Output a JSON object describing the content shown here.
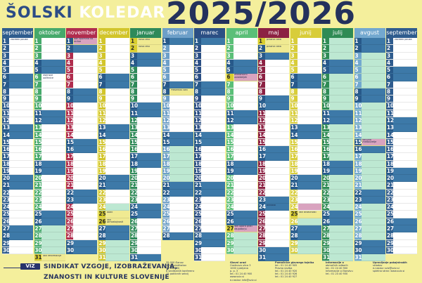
{
  "header": {
    "title_words": [
      "ŠOLSKI",
      "KOLEDAR"
    ],
    "year": "2025/2026"
  },
  "colors": {
    "header_bg": "#f4ef9c",
    "weekend_bg": "#3d79a8",
    "weekend_day_bg": "#27598a",
    "holiday_bg": "#f0ea92",
    "holiday_num_bg": "#d9ce2e",
    "event_bg": "#d9a3bf",
    "vacation_bg": "#bde8d2"
  },
  "calendar": {
    "months": [
      {
        "name": "september",
        "color": "#2f5c8e",
        "start_wd": 0,
        "days": 30,
        "weekend": [
          6,
          7,
          13,
          14,
          20,
          21,
          27,
          28
        ],
        "holiday": [],
        "vac": [],
        "pink": [],
        "events": {
          "1": "začetek pouka",
          "14": "",
          "16": "",
          "17": "",
          "18": "",
          "19": "",
          "20": "",
          "21": ""
        }
      },
      {
        "name": "oktober",
        "color": "#46a96b",
        "start_wd": 2,
        "days": 31,
        "weekend": [
          4,
          5,
          11,
          12,
          18,
          19,
          25,
          26
        ],
        "holiday": [
          31
        ],
        "vac": [
          27,
          28,
          29,
          30
        ],
        "pink": [],
        "events": {
          "5": "",
          "6": "jesenske počitnice",
          "23": "",
          "25": "",
          "27": "",
          "28": "",
          "31": "dan reformacije"
        }
      },
      {
        "name": "november",
        "color": "#b02d4e",
        "start_wd": 5,
        "days": 30,
        "weekend": [
          1,
          2,
          8,
          9,
          15,
          16,
          22,
          23,
          29,
          30
        ],
        "holiday": [
          1
        ],
        "vac": [],
        "pink": [
          1
        ],
        "events": {
          "1": "dan spomina na mrtve",
          "10": "",
          "20": "",
          "22": "",
          "25": "",
          "26": "",
          "27": "",
          "28": ""
        }
      },
      {
        "name": "december",
        "color": "#d2c52b",
        "start_wd": 0,
        "days": 31,
        "weekend": [
          6,
          7,
          13,
          14,
          20,
          21,
          27,
          28
        ],
        "holiday": [
          25,
          26
        ],
        "vac": [
          24,
          29,
          30,
          31
        ],
        "pink": [],
        "events": {
          "25": "božič",
          "26": "dan samostojnosti",
          "24": "",
          "28": ""
        }
      },
      {
        "name": "januar",
        "color": "#2e8a5a",
        "start_wd": 3,
        "days": 31,
        "weekend": [
          3,
          4,
          10,
          11,
          17,
          18,
          24,
          25,
          31
        ],
        "holiday": [
          1,
          2
        ],
        "vac": [],
        "pink": [],
        "events": {
          "1": "novo leto",
          "2": "novo leto",
          "6": "",
          "9": "",
          "10": "",
          "22": "",
          "30": ""
        }
      },
      {
        "name": "februar",
        "color": "#6d9fc8",
        "start_wd": 6,
        "days": 28,
        "weekend": [
          1,
          7,
          8,
          14,
          15,
          21,
          22,
          28
        ],
        "holiday": [
          8
        ],
        "vac": [
          16,
          17,
          18,
          19,
          20
        ],
        "pink": [
          5,
          6
        ],
        "events": {
          "8": "Prešernov dan",
          "12": "",
          "14": "",
          "16": "",
          "17": "",
          "18": "",
          "19": "",
          "20": "",
          "22": "",
          "26": ""
        }
      },
      {
        "name": "marec",
        "color": "#2b4f84",
        "start_wd": 6,
        "days": 31,
        "weekend": [
          1,
          7,
          8,
          14,
          15,
          21,
          22,
          28,
          29
        ],
        "holiday": [],
        "vac": [],
        "pink": [],
        "events": {
          "1": "",
          "7": "",
          "15": "",
          "17": "",
          "18": "",
          "21": "",
          "22": "",
          "27": ""
        }
      },
      {
        "name": "april",
        "color": "#5bbf78",
        "start_wd": 2,
        "days": 30,
        "weekend": [
          4,
          5,
          11,
          12,
          18,
          19,
          25,
          26
        ],
        "holiday": [
          6,
          27
        ],
        "vac": [
          27,
          28,
          29,
          30
        ],
        "pink": [
          6,
          27
        ],
        "events": {
          "6": "velikonočni ponedeljek",
          "14": "",
          "17": "",
          "19": "",
          "27": "dan upora proti okupatorju"
        }
      },
      {
        "name": "maj",
        "color": "#8c2143",
        "start_wd": 4,
        "days": 31,
        "weekend": [
          2,
          3,
          9,
          10,
          16,
          17,
          23,
          24,
          30,
          31
        ],
        "holiday": [
          1,
          2
        ],
        "vac": [],
        "pink": [],
        "events": {
          "1": "praznik dela",
          "2": "praznik dela",
          "8": "",
          "18": "",
          "19": "",
          "20": "",
          "21": "",
          "24": "binkošti"
        }
      },
      {
        "name": "junij",
        "color": "#d8cd3a",
        "start_wd": 0,
        "days": 30,
        "weekend": [
          6,
          7,
          13,
          14,
          20,
          21,
          27,
          28
        ],
        "holiday": [
          25
        ],
        "vac": [
          26,
          27,
          28,
          29,
          30
        ],
        "pink": [
          24
        ],
        "events": {
          "5": "",
          "14": "",
          "15": "",
          "16": "",
          "17": "",
          "23": "",
          "24": "",
          "25": "dan državnosti",
          "26": ""
        }
      },
      {
        "name": "julij",
        "color": "#2f8b55",
        "start_wd": 2,
        "days": 31,
        "weekend": [
          4,
          5,
          11,
          12,
          18,
          19,
          25,
          26
        ],
        "holiday": [],
        "vac": [
          1,
          2,
          3,
          6,
          7,
          8,
          9,
          10,
          13,
          14,
          15,
          16,
          17,
          20,
          21,
          22,
          23,
          24,
          27,
          28,
          29,
          30,
          31
        ],
        "pink": [],
        "events": {}
      },
      {
        "name": "avgust",
        "color": "#73a8cf",
        "start_wd": 5,
        "days": 31,
        "weekend": [
          1,
          2,
          8,
          9,
          15,
          16,
          22,
          23,
          29,
          30
        ],
        "holiday": [
          15
        ],
        "vac": [
          3,
          4,
          5,
          6,
          7,
          10,
          11,
          12,
          13,
          14,
          17,
          18,
          19,
          20,
          21,
          24,
          25,
          26,
          27,
          28,
          31
        ],
        "pink": [
          15
        ],
        "events": {
          "15": "Marijino vnebovzetje",
          "17": "",
          "26": ""
        }
      },
      {
        "name": "september",
        "color": "#2f5c8e",
        "start_wd": 1,
        "days": 30,
        "weekend": [
          5,
          6,
          12,
          13,
          19,
          20,
          26,
          27
        ],
        "holiday": [],
        "vac": [],
        "pink": [],
        "events": {
          "1": "začetek pouka"
        }
      }
    ]
  },
  "footer": {
    "logo": "VIZ",
    "union_line1": "SINDIKAT VZGOJE, IZOBRAŽEVANJA,",
    "union_line2": "ZNANOSTI IN KULTURE SLOVENIJE",
    "blocks": [
      {
        "title": "",
        "lines": [
          "35.000 članov",
          "1.047 sindikatov",
          "37 območij",
          "8 sindikalnih konferenc",
          "15 poklicnih sekcij"
        ]
      },
      {
        "title": "Glavni urad",
        "lines": [
          "Oražnova ulica 3",
          "1000 Ljubljana",
          "p. p. 3",
          "tel.: 01 24 40 900",
          "www.sviz.si",
          "e-naslov: info@sviz.si"
        ]
      },
      {
        "title": "Pomočnice glavnega tajnika",
        "lines": [
          "tel.: 01 24 40 905",
          "Pravna služba",
          "tel.: 01 24 40 920",
          "tel.: 01 24 40 926",
          "tel.: 01 24 40 927"
        ]
      },
      {
        "title": "Informacije o",
        "lines": [
          "območnih odborih",
          "tel.: 01 24 40 900",
          "Informacije o članstvu",
          "tel.: 01 24 40 930"
        ]
      },
      {
        "title": "Upravljanje pokojninskih",
        "lines": [
          "skladov",
          "e-naslov: sviz@sviz.si",
          "spletna stran: www.sviz.si"
        ]
      }
    ]
  }
}
